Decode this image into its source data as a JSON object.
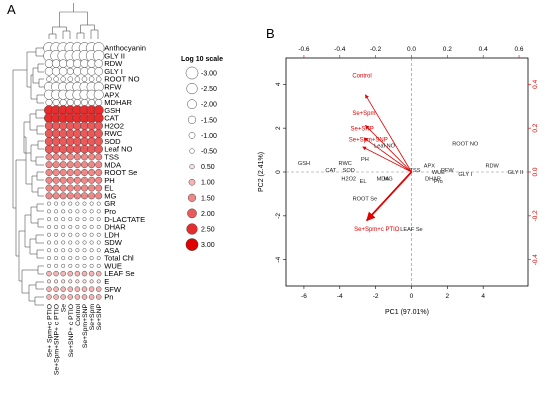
{
  "panel_labels": [
    "A",
    "B"
  ],
  "chart_data": [
    {
      "type": "heatmap",
      "panel": "A",
      "encoding": "circle size and red intensity proportional to log10 value",
      "rows": [
        "Anthocyanin",
        "GLY II",
        "RDW",
        "GLY I",
        "ROOT NO",
        "RFW",
        "APX",
        "MDHAR",
        "GSH",
        "CAT",
        "H2O2",
        "RWC",
        "SOD",
        "Leaf NO",
        "TSS",
        "MDA",
        "ROOT Se",
        "PH",
        "EL",
        "MG",
        "GR",
        "Pro",
        "D-LACTATE",
        "DHAR",
        "LDH",
        "SDW",
        "ASA",
        "Total Chl",
        "WUE",
        "LEAF Se",
        "E",
        "SFW",
        "Pn"
      ],
      "columns": [
        "Se+ Spm+c PTIO",
        "Se+Spm+SNP+ c PTIO",
        "Se",
        "Se+SNP+ c PTIO",
        "Control",
        "Se+Spm+SNP",
        "Se+Spm",
        "Se+SNP"
      ],
      "values": [
        [
          -3,
          -3,
          -3,
          -3,
          -3,
          -3,
          -3,
          -3
        ],
        [
          -3,
          -3,
          -3,
          -3,
          -3,
          -3,
          -3,
          -3
        ],
        [
          -2,
          -2,
          -2,
          -2,
          -2,
          -2,
          -2,
          -2
        ],
        [
          -2,
          -2,
          -2,
          -1.5,
          -2,
          -2,
          -2,
          -2
        ],
        [
          -1,
          -1,
          -1,
          -1,
          -1,
          -1,
          -1,
          -1
        ],
        [
          -2.5,
          -2.5,
          -2.5,
          -2.5,
          -2.5,
          -2.5,
          -2.5,
          -2.5
        ],
        [
          -2.5,
          -2.5,
          -2.5,
          -2.5,
          -2.5,
          -2.5,
          -2.5,
          -2.5
        ],
        [
          -1.5,
          -1.5,
          -1.5,
          -1.5,
          -1.5,
          -1.5,
          -1.5,
          -1.5
        ],
        [
          2.5,
          2.5,
          2.5,
          2.5,
          2.5,
          2.5,
          2.5,
          2.5
        ],
        [
          2.5,
          2.5,
          2.5,
          2.5,
          2.5,
          2.5,
          2.5,
          2.5
        ],
        [
          2,
          2,
          2,
          2,
          2,
          2,
          2,
          2
        ],
        [
          2,
          2,
          2,
          2,
          2,
          2,
          2,
          2
        ],
        [
          2,
          2,
          2,
          2,
          2,
          2,
          2,
          2
        ],
        [
          2,
          2,
          2,
          2,
          2,
          2,
          2,
          2
        ],
        [
          1.5,
          1.5,
          1.5,
          1.5,
          1.5,
          1.5,
          1.5,
          1.5
        ],
        [
          1.5,
          1.5,
          1.5,
          1.5,
          1.5,
          1.5,
          1.5,
          1.5
        ],
        [
          1.5,
          1.5,
          1.5,
          1.5,
          1.5,
          1.5,
          1.5,
          1.5
        ],
        [
          1.5,
          1.5,
          1.5,
          1.5,
          1.5,
          1.5,
          1.5,
          1.5
        ],
        [
          1.5,
          1.5,
          1.5,
          1.5,
          1.5,
          1.5,
          1.5,
          1.5
        ],
        [
          1.5,
          1.5,
          1.5,
          1.5,
          1.5,
          1.5,
          1.5,
          1.5
        ],
        [
          -0.5,
          -0.5,
          -0.5,
          -0.5,
          -0.5,
          -0.5,
          -0.5,
          -0.5
        ],
        [
          -0.5,
          -0.5,
          -0.5,
          -0.5,
          -0.5,
          -0.5,
          -0.5,
          -0.5
        ],
        [
          -0.5,
          -0.5,
          -0.5,
          -0.5,
          -0.5,
          -0.5,
          -0.5,
          -0.5
        ],
        [
          -0.5,
          -0.5,
          -0.5,
          -0.5,
          -0.5,
          -0.5,
          -0.5,
          -0.5
        ],
        [
          -0.5,
          -0.5,
          -0.5,
          -0.5,
          -0.5,
          -0.5,
          -0.5,
          -0.5
        ],
        [
          -0.5,
          -0.5,
          -0.5,
          -0.5,
          -0.5,
          -0.5,
          -0.5,
          -0.5
        ],
        [
          -0.5,
          -0.5,
          -0.5,
          -0.5,
          -0.5,
          -0.5,
          -0.5,
          -0.5
        ],
        [
          -0.5,
          -0.5,
          -0.5,
          -0.5,
          -0.5,
          -0.5,
          -0.5,
          -0.5
        ],
        [
          -0.5,
          -0.5,
          -0.5,
          -0.5,
          -0.5,
          -0.5,
          -0.5,
          -0.5
        ],
        [
          1,
          1,
          1,
          1,
          1,
          1,
          1,
          1
        ],
        [
          0.5,
          0.5,
          0.5,
          0.5,
          0.5,
          0.5,
          0.5,
          0.5
        ],
        [
          1,
          1,
          1,
          1,
          1,
          1,
          1,
          1
        ],
        [
          1,
          1,
          1,
          1,
          1,
          1,
          1,
          1
        ]
      ],
      "legend": {
        "title": "Log 10 scale",
        "levels": [
          -3,
          -2.5,
          -2,
          -1.5,
          -1,
          -0.5,
          0.5,
          1,
          1.5,
          2,
          2.5,
          3
        ],
        "labels": [
          "-3.00",
          "-2.50",
          "-2.00",
          "-1.50",
          "-1.00",
          "-0.50",
          "0.50",
          "1.00",
          "1.50",
          "2.00",
          "2.50",
          "3.00"
        ],
        "position": "right"
      },
      "colors": {
        "negative_fill": "#ffffff",
        "positive_low": "#fce2e2",
        "positive_high": "#e00000",
        "stroke": "#444444"
      },
      "dendrograms": [
        "top",
        "left"
      ]
    },
    {
      "type": "scatter",
      "subtype": "biplot",
      "panel": "B",
      "xlabel": "PC1 (97.01%)",
      "ylabel": "PC2 (2.41%)",
      "xlim": [
        -7,
        6.5
      ],
      "ylim": [
        -5.2,
        5.2
      ],
      "xticks": [
        -6,
        -4,
        -2,
        0,
        2,
        4
      ],
      "xtick_labels": [
        "-6",
        "-4",
        "-2",
        "0",
        "2",
        "4"
      ],
      "yticks": [
        -4,
        -2,
        0,
        2,
        4
      ],
      "ytick_labels": [
        "-4",
        "-2",
        "0",
        "2",
        "4"
      ],
      "x2lim": [
        -0.7,
        0.65
      ],
      "x2ticks": [
        -0.6,
        -0.4,
        -0.2,
        0.0,
        0.2,
        0.4,
        0.6
      ],
      "x2tick_labels": [
        "-0.6",
        "-0.4",
        "-0.2",
        "0.0",
        "0.2",
        "0.4",
        "0.6"
      ],
      "y2lim": [
        -0.52,
        0.52
      ],
      "y2ticks": [
        -0.4,
        -0.2,
        0.0,
        0.2,
        0.4
      ],
      "y2tick_labels": [
        "-0.4",
        "-0.2",
        "0.0",
        "0.2",
        "0.4"
      ],
      "axis_color_secondary": "#e00000",
      "variables": [
        {
          "label": "GSH",
          "x": -6.0,
          "y": 0.4
        },
        {
          "label": "CAT",
          "x": -4.5,
          "y": 0.1
        },
        {
          "label": "RWC",
          "x": -3.7,
          "y": 0.4
        },
        {
          "label": "SOD",
          "x": -3.5,
          "y": 0.1
        },
        {
          "label": "PH",
          "x": -2.6,
          "y": 0.6
        },
        {
          "label": "H2O2",
          "x": -3.5,
          "y": -0.3
        },
        {
          "label": "EL",
          "x": -2.7,
          "y": -0.4
        },
        {
          "label": "MDA",
          "x": -1.6,
          "y": -0.3
        },
        {
          "label": "MG",
          "x": -1.3,
          "y": -0.3
        },
        {
          "label": "Leaf NO",
          "x": -1.5,
          "y": 1.2
        },
        {
          "label": "ROOT Se",
          "x": -2.6,
          "y": -1.2
        },
        {
          "label": "LEAF Se",
          "x": 0.0,
          "y": -2.6
        },
        {
          "label": "ROOT NO",
          "x": 3.0,
          "y": 1.3
        },
        {
          "label": "RDW",
          "x": 4.5,
          "y": 0.3
        },
        {
          "label": "GLY II",
          "x": 5.8,
          "y": 0.0
        },
        {
          "label": "GLY I",
          "x": 3.0,
          "y": -0.1
        },
        {
          "label": "RFW",
          "x": 2.0,
          "y": 0.1
        },
        {
          "label": "APX",
          "x": 1.0,
          "y": 0.3
        },
        {
          "label": "WUE",
          "x": 1.5,
          "y": 0.0
        },
        {
          "label": "DHAR",
          "x": 1.2,
          "y": -0.3
        },
        {
          "label": "Pro",
          "x": 1.5,
          "y": -0.4
        },
        {
          "label": "TSS",
          "x": 0.2,
          "y": 0.1
        }
      ],
      "treatments": [
        {
          "label": "Control",
          "x": -3.3,
          "y": 4.3,
          "arrow": true
        },
        {
          "label": "Se+Spm",
          "x": -3.3,
          "y": 2.6,
          "arrow": true
        },
        {
          "label": "Se+SNP",
          "x": -3.4,
          "y": 1.9,
          "arrow": true
        },
        {
          "label": "Se+Spm+SNP",
          "x": -3.5,
          "y": 1.4,
          "arrow": true
        },
        {
          "label": "Se+Spm+c PTIO",
          "x": -3.2,
          "y": -2.7,
          "arrow": true
        }
      ]
    }
  ]
}
